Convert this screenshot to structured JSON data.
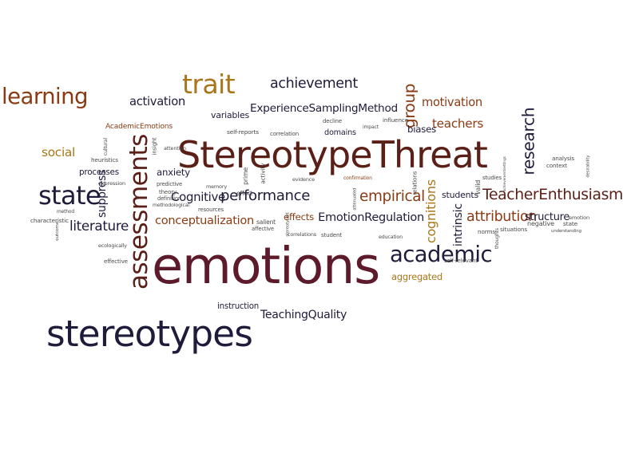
{
  "colors": {
    "navy": "#1e1c3a",
    "maroon": "#5a1f17",
    "wine": "#5c1a2a",
    "brown": "#6e3514",
    "rust": "#8a3b14",
    "gold": "#a9761b",
    "gray": "#4a4a4a"
  },
  "words": [
    {
      "text": "emotions",
      "color": "wine",
      "vertical": false
    },
    {
      "text": "StereotypeThreat",
      "color": "maroon",
      "vertical": false
    },
    {
      "text": "stereotypes",
      "color": "navy",
      "vertical": false
    },
    {
      "text": "assessments",
      "color": "maroon",
      "vertical": true
    },
    {
      "text": "academic",
      "color": "navy",
      "vertical": false
    },
    {
      "text": "trait",
      "color": "gold",
      "vertical": false
    },
    {
      "text": "learning",
      "color": "rust",
      "vertical": false
    },
    {
      "text": "state",
      "color": "navy",
      "vertical": false
    },
    {
      "text": "achievement",
      "color": "navy",
      "vertical": false
    },
    {
      "text": "TeacherEnthusiasm",
      "color": "maroon",
      "vertical": false
    },
    {
      "text": "performance",
      "color": "navy",
      "vertical": false
    },
    {
      "text": "Cognitive",
      "color": "navy",
      "vertical": false
    },
    {
      "text": "research",
      "color": "navy",
      "vertical": true
    },
    {
      "text": "ExperienceSamplingMethod",
      "color": "navy",
      "vertical": false
    },
    {
      "text": "EmotionRegulation",
      "color": "navy",
      "vertical": false
    },
    {
      "text": "TeachingQuality",
      "color": "navy",
      "vertical": false
    },
    {
      "text": "conceptualization",
      "color": "rust",
      "vertical": false
    },
    {
      "text": "empirical",
      "color": "rust",
      "vertical": false
    },
    {
      "text": "attribution",
      "color": "rust",
      "vertical": false
    },
    {
      "text": "motivation",
      "color": "rust",
      "vertical": false
    },
    {
      "text": "teachers",
      "color": "rust",
      "vertical": false
    },
    {
      "text": "group",
      "color": "rust",
      "vertical": true
    },
    {
      "text": "cognitions",
      "color": "gold",
      "vertical": true
    },
    {
      "text": "activation",
      "color": "navy",
      "vertical": false
    },
    {
      "text": "literature",
      "color": "navy",
      "vertical": false
    },
    {
      "text": "social",
      "color": "gold",
      "vertical": false
    },
    {
      "text": "processes",
      "color": "navy",
      "vertical": false
    },
    {
      "text": "structure",
      "color": "navy",
      "vertical": false
    },
    {
      "text": "anxiety",
      "color": "navy",
      "vertical": false
    },
    {
      "text": "suppress",
      "color": "navy",
      "vertical": true
    },
    {
      "text": "variables",
      "color": "navy",
      "vertical": false
    },
    {
      "text": "biases",
      "color": "navy",
      "vertical": false
    },
    {
      "text": "domains",
      "color": "navy",
      "vertical": false
    },
    {
      "text": "effects",
      "color": "rust",
      "vertical": false
    },
    {
      "text": "students",
      "color": "navy",
      "vertical": false
    },
    {
      "text": "intrinsic",
      "color": "navy",
      "vertical": true
    },
    {
      "text": "AcademicEmotions",
      "color": "rust",
      "vertical": false
    },
    {
      "text": "aggregated",
      "color": "gold",
      "vertical": false
    },
    {
      "text": "instruction",
      "color": "navy",
      "vertical": false
    },
    {
      "text": "self-reports",
      "color": "gray",
      "vertical": false
    },
    {
      "text": "correlation",
      "color": "gray",
      "vertical": false
    },
    {
      "text": "impact",
      "color": "gray",
      "vertical": false
    },
    {
      "text": "decline",
      "color": "gray",
      "vertical": false
    },
    {
      "text": "influence",
      "color": "gray",
      "vertical": false
    },
    {
      "text": "evidence",
      "color": "gray",
      "vertical": false
    },
    {
      "text": "confirmation",
      "color": "rust",
      "vertical": false
    },
    {
      "text": "correlations",
      "color": "gray",
      "vertical": false
    },
    {
      "text": "student",
      "color": "gray",
      "vertical": false
    },
    {
      "text": "education",
      "color": "gray",
      "vertical": false
    },
    {
      "text": "self-relevant",
      "color": "gray",
      "vertical": false
    },
    {
      "text": "norms",
      "color": "gray",
      "vertical": false
    },
    {
      "text": "situations",
      "color": "gray",
      "vertical": false
    },
    {
      "text": "negative",
      "color": "gray",
      "vertical": false
    },
    {
      "text": "state",
      "color": "gray",
      "vertical": false
    },
    {
      "text": "understanding",
      "color": "gray",
      "vertical": false
    },
    {
      "text": "emotion",
      "color": "gray",
      "vertical": false
    },
    {
      "text": "analysis",
      "color": "gray",
      "vertical": false
    },
    {
      "text": "context",
      "color": "gray",
      "vertical": false
    },
    {
      "text": "desirability",
      "color": "gray",
      "vertical": true
    },
    {
      "text": "studies",
      "color": "gray",
      "vertical": false
    },
    {
      "text": "relations",
      "color": "gray",
      "vertical": true
    },
    {
      "text": "valid",
      "color": "gray",
      "vertical": true
    },
    {
      "text": "thoughts",
      "color": "gray",
      "vertical": true
    },
    {
      "text": "achievementsettings",
      "color": "gray",
      "vertical": true
    },
    {
      "text": "attenuated",
      "color": "gray",
      "vertical": true
    },
    {
      "text": "stereotyped",
      "color": "gray",
      "vertical": true
    },
    {
      "text": "affective",
      "color": "gray",
      "vertical": false
    },
    {
      "text": "salient",
      "color": "gray",
      "vertical": false
    },
    {
      "text": "effort",
      "color": "gray",
      "vertical": false
    },
    {
      "text": "memory",
      "color": "gray",
      "vertical": false
    },
    {
      "text": "prime",
      "color": "gray",
      "vertical": true
    },
    {
      "text": "activity",
      "color": "gray",
      "vertical": true
    },
    {
      "text": "insight",
      "color": "gray",
      "vertical": true
    },
    {
      "text": "attention",
      "color": "gray",
      "vertical": false
    },
    {
      "text": "predictive",
      "color": "gray",
      "vertical": false
    },
    {
      "text": "theory",
      "color": "gray",
      "vertical": false
    },
    {
      "text": "definition",
      "color": "gray",
      "vertical": false
    },
    {
      "text": "methodological",
      "color": "gray",
      "vertical": false
    },
    {
      "text": "resources",
      "color": "gray",
      "vertical": false
    },
    {
      "text": "cultural",
      "color": "gray",
      "vertical": true
    },
    {
      "text": "heuristics",
      "color": "gray",
      "vertical": false
    },
    {
      "text": "expression",
      "color": "gray",
      "vertical": false
    },
    {
      "text": "method",
      "color": "gray",
      "vertical": false
    },
    {
      "text": "characteristic",
      "color": "gray",
      "vertical": false
    },
    {
      "text": "outcome",
      "color": "gray",
      "vertical": true
    },
    {
      "text": "ecologically",
      "color": "gray",
      "vertical": false
    },
    {
      "text": "effective",
      "color": "gray",
      "vertical": false
    }
  ]
}
